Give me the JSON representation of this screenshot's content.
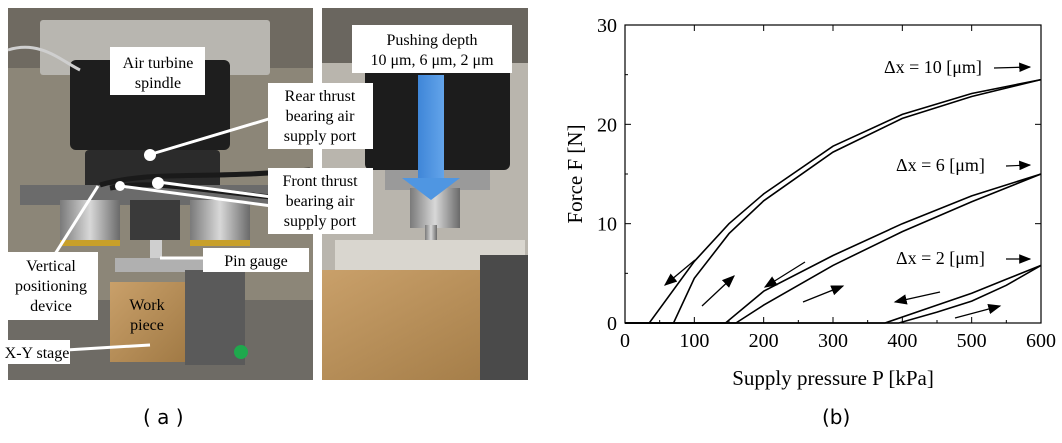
{
  "panel_a": {
    "labels": {
      "air_turbine_spindle": [
        "Air turbine",
        "spindle"
      ],
      "rear_thrust": [
        "Rear thrust",
        "bearing air",
        "supply port"
      ],
      "front_thrust": [
        "Front thrust",
        "bearing air",
        "supply port"
      ],
      "vertical_positioning": [
        "Vertical",
        "positioning",
        "device"
      ],
      "work_piece": [
        "Work",
        "piece"
      ],
      "pin_gauge": "Pin gauge",
      "xy_stage": "X-Y stage",
      "pushing_depth": [
        "Pushing depth",
        "10 μm, 6 μm, 2 μm"
      ]
    },
    "caption": "( a )"
  },
  "panel_b": {
    "caption": "(b)"
  },
  "chart_data": {
    "type": "line",
    "xlabel": "Supply pressure P [kPa]",
    "ylabel": "Force F [N]",
    "xlim": [
      0,
      600
    ],
    "ylim": [
      0,
      30
    ],
    "xticks": [
      "0",
      "100",
      "200",
      "300",
      "400",
      "500",
      "600"
    ],
    "yticks": [
      "0",
      "10",
      "20",
      "30"
    ],
    "grid": false,
    "series": [
      {
        "name": "Δx = 10 [μm]",
        "load": [
          [
            70,
            0
          ],
          [
            100,
            4.5
          ],
          [
            150,
            9
          ],
          [
            200,
            12.3
          ],
          [
            300,
            17.2
          ],
          [
            400,
            20.6
          ],
          [
            500,
            22.8
          ],
          [
            600,
            24.5
          ]
        ],
        "unload": [
          [
            35,
            0
          ],
          [
            100,
            6.2
          ],
          [
            150,
            10
          ],
          [
            200,
            13
          ],
          [
            300,
            17.8
          ],
          [
            400,
            21
          ],
          [
            500,
            23.1
          ],
          [
            600,
            24.5
          ]
        ]
      },
      {
        "name": "Δx = 6 [μm]",
        "load": [
          [
            160,
            0
          ],
          [
            200,
            1.8
          ],
          [
            300,
            5.8
          ],
          [
            400,
            9.2
          ],
          [
            500,
            12.2
          ],
          [
            600,
            15
          ]
        ],
        "unload": [
          [
            145,
            0
          ],
          [
            200,
            3.2
          ],
          [
            300,
            6.8
          ],
          [
            400,
            10
          ],
          [
            500,
            12.8
          ],
          [
            600,
            15
          ]
        ]
      },
      {
        "name": "Δx = 2 [μm]",
        "load": [
          [
            395,
            0
          ],
          [
            450,
            1.1
          ],
          [
            500,
            2.2
          ],
          [
            550,
            3.8
          ],
          [
            600,
            5.8
          ]
        ],
        "unload": [
          [
            375,
            0
          ],
          [
            450,
            1.8
          ],
          [
            500,
            3
          ],
          [
            550,
            4.4
          ],
          [
            600,
            5.8
          ]
        ]
      }
    ],
    "annotations": [
      "Δx = 10 [μm]",
      "Δx = 6 [μm]",
      "Δx = 2 [μm]"
    ]
  }
}
